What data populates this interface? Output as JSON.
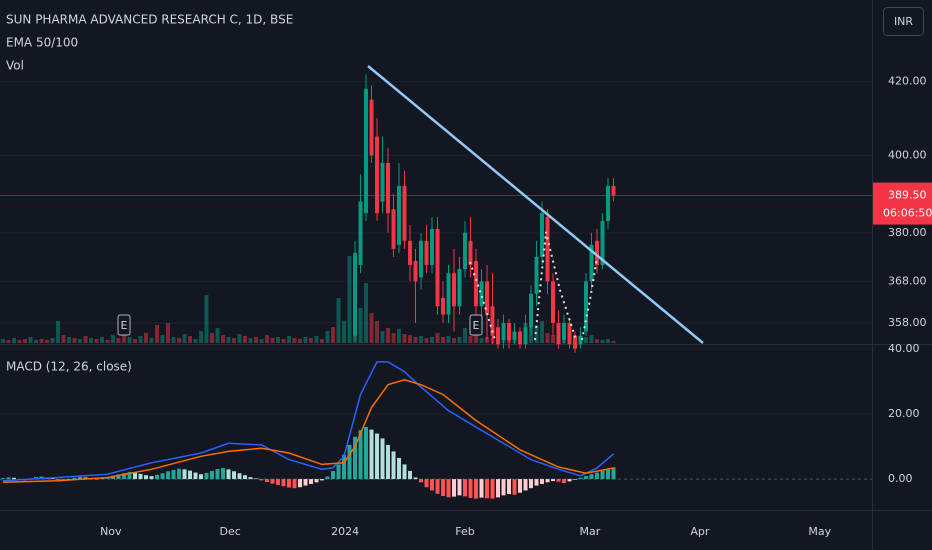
{
  "chart_data": {
    "type": "candlestick",
    "title": "SUN PHARMA ADVANCED RESEARCH C, 1D, BSE",
    "indicator_labels": [
      "EMA 50/100",
      "Vol"
    ],
    "currency": "INR",
    "log_scale": true,
    "xlim": [
      -0.55,
      158
    ],
    "ylim": [
      353.3,
      443.3
    ],
    "yticks": [
      {
        "value": 420,
        "label": "420.00"
      },
      {
        "value": 400,
        "label": "400.00"
      },
      {
        "value": 380,
        "label": "380.00"
      },
      {
        "value": 368,
        "label": "368.00"
      },
      {
        "value": 358,
        "label": "358.00"
      }
    ],
    "xticks": [
      {
        "value": 19.6,
        "label": "Nov"
      },
      {
        "value": 41.3,
        "label": "Dec"
      },
      {
        "value": 62.2,
        "label": "2024"
      },
      {
        "value": 84,
        "label": "Feb"
      },
      {
        "value": 106.7,
        "label": "Mar"
      },
      {
        "value": 126.7,
        "label": "Apr"
      },
      {
        "value": 148.5,
        "label": "May"
      }
    ],
    "up_color": "#089981",
    "down_color": "#f23645",
    "candles": [
      null,
      null,
      null,
      null,
      null,
      null,
      null,
      null,
      null,
      null,
      null,
      null,
      null,
      null,
      null,
      null,
      null,
      null,
      null,
      null,
      null,
      null,
      null,
      null,
      null,
      null,
      null,
      null,
      null,
      null,
      null,
      null,
      null,
      null,
      null,
      null,
      null,
      null,
      null,
      null,
      null,
      null,
      null,
      null,
      null,
      null,
      null,
      null,
      null,
      null,
      null,
      null,
      null,
      null,
      null,
      null,
      null,
      null,
      null,
      null,
      null,
      null,
      null,
      null,
      [
        355,
        378,
        354,
        375
      ],
      [
        372,
        395,
        370,
        388
      ],
      [
        385,
        422,
        383,
        418
      ],
      [
        415,
        419,
        398,
        400
      ],
      [
        405,
        410,
        383,
        385
      ],
      [
        388,
        405,
        385,
        398
      ],
      [
        398,
        402,
        380,
        385
      ],
      [
        386,
        390,
        374,
        376
      ],
      [
        377,
        398,
        375,
        392
      ],
      [
        392,
        396,
        376,
        378
      ],
      [
        378,
        382,
        368,
        372
      ],
      [
        373,
        376,
        358,
        368
      ],
      [
        369,
        380,
        366,
        378
      ],
      [
        378,
        382,
        370,
        372
      ],
      [
        372,
        384,
        370,
        381
      ],
      [
        381,
        384,
        360,
        362
      ],
      [
        364,
        368,
        358,
        360
      ],
      [
        360,
        372,
        358,
        370
      ],
      [
        370,
        376,
        356,
        362
      ],
      [
        362,
        374,
        360,
        371
      ],
      [
        371,
        383,
        369,
        380
      ],
      [
        378,
        384,
        369,
        372
      ],
      [
        373,
        376,
        356,
        362
      ],
      [
        362,
        371,
        358,
        368
      ],
      [
        368,
        372,
        354,
        360
      ],
      [
        362,
        370,
        353,
        355
      ],
      [
        357,
        359,
        352,
        353
      ],
      [
        354,
        360,
        352,
        358
      ],
      [
        358,
        359,
        352,
        354
      ],
      [
        354,
        358,
        353,
        356
      ],
      [
        356,
        357,
        352,
        353
      ],
      [
        353,
        360,
        352,
        357
      ],
      [
        357,
        367,
        355,
        365
      ],
      [
        365,
        378,
        362,
        374
      ],
      [
        374,
        388,
        372,
        385
      ],
      [
        384,
        386,
        365,
        368
      ],
      [
        368,
        370,
        355,
        358
      ],
      [
        358,
        361,
        352,
        353
      ],
      [
        354,
        360,
        353,
        358
      ],
      [
        358,
        359,
        352,
        353
      ],
      [
        355,
        356,
        351,
        352
      ],
      [
        353,
        357,
        352,
        355
      ],
      [
        356,
        370,
        355,
        368
      ],
      [
        368,
        380,
        366,
        377
      ],
      [
        378,
        381,
        370,
        372
      ],
      [
        372,
        385,
        371,
        383
      ],
      [
        383,
        394,
        381,
        392
      ],
      [
        392,
        394,
        388,
        389.5
      ]
    ],
    "volume": {
      "up": [
        4,
        null,
        5,
        null,
        null,
        6,
        3,
        null,
        null,
        5,
        22,
        null,
        6,
        null,
        4,
        null,
        5,
        null,
        6,
        null,
        8,
        null,
        null,
        6,
        null,
        7,
        null,
        5,
        null,
        8,
        null,
        6,
        null,
        9,
        null,
        4,
        12,
        48,
        null,
        15,
        null,
        6,
        null,
        9,
        null,
        5,
        null,
        4,
        null,
        null,
        6,
        null,
        7,
        null,
        null,
        6,
        null,
        7,
        null,
        12,
        null,
        45,
        22,
        87,
        65,
        35,
        60,
        null,
        null,
        12,
        null,
        null,
        14,
        null,
        null,
        null,
        7,
        null,
        6,
        null,
        null,
        7,
        null,
        6,
        15,
        null,
        null,
        5,
        null,
        null,
        null,
        20,
        null,
        4,
        null,
        20,
        25,
        18,
        22,
        null,
        null,
        null,
        4,
        null,
        null,
        3,
        6,
        8,
        null,
        3,
        4,
        null
      ],
      "down": [
        null,
        3,
        null,
        3,
        4,
        null,
        null,
        4,
        3,
        null,
        null,
        8,
        null,
        5,
        null,
        7,
        null,
        4,
        null,
        3,
        null,
        5,
        12,
        null,
        4,
        null,
        10,
        null,
        18,
        null,
        20,
        null,
        5,
        null,
        7,
        null,
        null,
        null,
        10,
        null,
        8,
        null,
        5,
        null,
        7,
        null,
        6,
        null,
        8,
        5,
        null,
        4,
        null,
        5,
        4,
        null,
        5,
        null,
        4,
        null,
        16,
        null,
        null,
        null,
        null,
        null,
        null,
        30,
        22,
        null,
        15,
        10,
        null,
        9,
        8,
        6,
        null,
        5,
        null,
        10,
        6,
        null,
        5,
        null,
        null,
        7,
        8,
        null,
        6,
        5,
        4,
        null,
        5,
        null,
        3,
        null,
        null,
        null,
        null,
        10,
        8,
        5,
        null,
        3,
        2,
        null,
        null,
        null,
        4,
        null,
        null,
        2
      ]
    },
    "last_price": {
      "value": 389.5,
      "label": "389.50"
    },
    "countdown": "06:06:50",
    "events": [
      {
        "x": 22,
        "label": "E"
      },
      {
        "x": 86,
        "label": "E"
      }
    ],
    "macd": {
      "title": "MACD (12, 26, close)",
      "ylim": [
        -9.5,
        41.2
      ],
      "yticks": [
        {
          "value": 40,
          "label": "40.00"
        },
        {
          "value": 20,
          "label": "20.00"
        },
        {
          "value": 0,
          "label": "0.00"
        }
      ],
      "histogram_colors": [
        "#26a69a",
        "#b2dfdb",
        "#ff5252",
        "#ffcdd2"
      ],
      "histogram": [
        0.3,
        0.5,
        0.4,
        -0.2,
        -0.4,
        0.2,
        0.6,
        0.8,
        0.5,
        0.3,
        -0.3,
        -0.5,
        -0.2,
        0.4,
        0.7,
        0.5,
        0.2,
        -0.2,
        0.3,
        0.6,
        1.0,
        1.4,
        1.8,
        2.2,
        2.0,
        1.6,
        1.2,
        0.9,
        1.3,
        1.8,
        2.4,
        2.8,
        3.2,
        3.0,
        2.6,
        2.0,
        1.5,
        1.9,
        2.5,
        3.1,
        3.4,
        3.0,
        2.4,
        1.8,
        1.2,
        0.6,
        0.2,
        -0.4,
        -0.9,
        -1.4,
        -1.8,
        -2.2,
        -2.6,
        -2.8,
        -2.5,
        -2.0,
        -1.5,
        -1.0,
        -0.4,
        0.8,
        2.5,
        4.5,
        7.5,
        10.5,
        13.0,
        15.0,
        16.0,
        15.2,
        14.0,
        12.5,
        10.5,
        8.5,
        6.5,
        4.5,
        2.5,
        0.5,
        -1.0,
        -2.5,
        -3.5,
        -4.5,
        -5.2,
        -5.6,
        -5.4,
        -5.0,
        -5.3,
        -5.8,
        -6.0,
        -5.7,
        -5.9,
        -6.0,
        -5.6,
        -5.0,
        -4.6,
        -4.8,
        -4.2,
        -3.5,
        -2.8,
        -2.0,
        -1.5,
        -1.0,
        -0.6,
        -0.8,
        -1.2,
        -0.7,
        -0.2,
        0.4,
        0.9,
        1.5,
        2.0,
        2.6,
        3.0,
        3.6
      ],
      "series": [
        {
          "color": "#2962ff",
          "x": [
            0,
            10,
            19,
            27,
            36,
            41,
            47,
            52,
            58,
            60,
            62,
            65,
            68,
            70,
            73,
            75.5,
            81,
            85,
            90,
            96,
            101,
            105,
            108,
            111
          ],
          "values": [
            -0.5,
            0.5,
            1.5,
            5,
            8,
            11,
            10.5,
            6,
            3,
            3.5,
            7,
            26,
            36,
            36,
            33,
            29,
            21,
            17,
            12,
            6,
            3,
            1,
            3.4,
            7.7
          ]
        },
        {
          "color": "#ff6d00",
          "x": [
            0,
            10,
            19,
            27,
            36,
            41,
            47,
            52,
            58,
            62,
            64,
            67,
            70,
            73,
            76,
            80,
            86,
            94,
            101,
            106,
            111
          ],
          "values": [
            -1,
            -0.5,
            0.5,
            3,
            7,
            8.5,
            9.5,
            8,
            4.5,
            5,
            10,
            22,
            29,
            30.5,
            29,
            26,
            18,
            9,
            3.7,
            1.8,
            3.4
          ]
        }
      ]
    }
  }
}
